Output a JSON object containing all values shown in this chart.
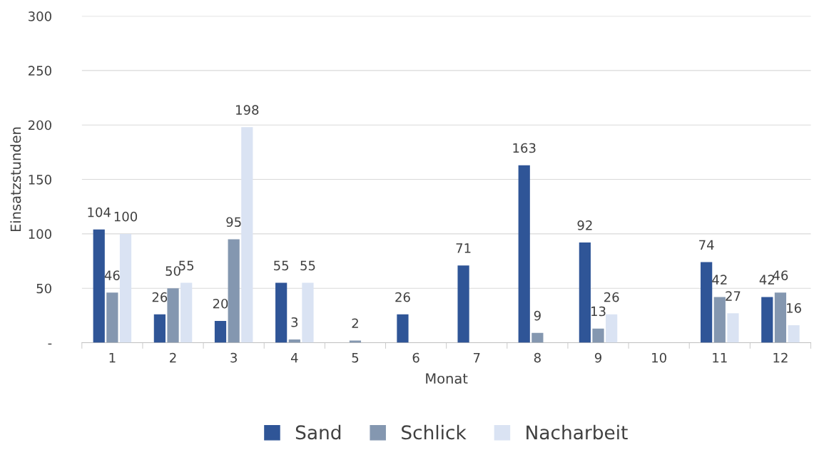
{
  "chart_data": {
    "type": "bar",
    "xlabel": "Monat",
    "ylabel": "Einsatzstunden",
    "categories": [
      "1",
      "2",
      "3",
      "4",
      "5",
      "6",
      "7",
      "8",
      "9",
      "10",
      "11",
      "12"
    ],
    "series": [
      {
        "name": "Sand",
        "color": "#2f5597",
        "values": [
          104,
          26,
          20,
          55,
          null,
          26,
          71,
          163,
          92,
          null,
          74,
          42
        ]
      },
      {
        "name": "Schlick",
        "color": "#8497b0",
        "values": [
          46,
          50,
          95,
          3,
          2,
          null,
          null,
          9,
          13,
          null,
          42,
          46
        ]
      },
      {
        "name": "Nacharbeit",
        "color": "#dae3f3",
        "values": [
          100,
          55,
          198,
          55,
          null,
          null,
          null,
          null,
          26,
          null,
          27,
          16
        ]
      }
    ],
    "ylim": [
      0,
      300
    ],
    "yticks": [
      {
        "value": 0,
        "label": "-"
      },
      50,
      100,
      150,
      200,
      250,
      300
    ],
    "grid": "y",
    "legend": "bottom",
    "data_labels": true
  }
}
